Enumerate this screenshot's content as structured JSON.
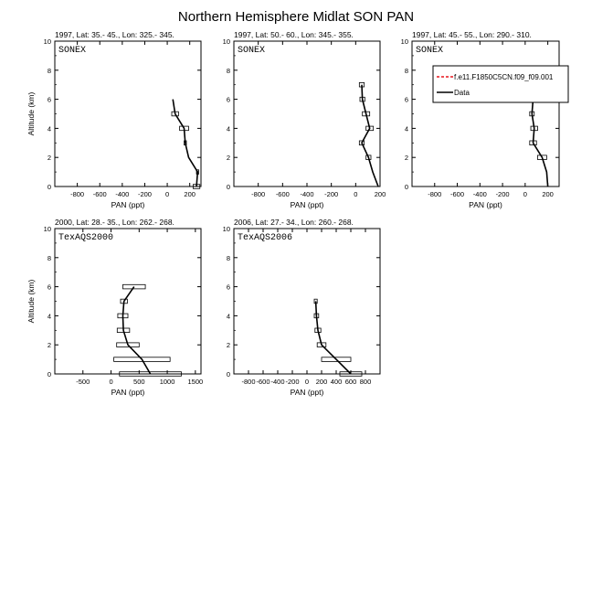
{
  "figure": {
    "title": "Northern Hemisphere Midlat SON PAN"
  },
  "colors": {
    "model_line": "#e8151b",
    "data_line": "#000000",
    "axis": "#000000"
  },
  "legend": {
    "placement": "top-right of third panel",
    "entries": [
      {
        "label": "f.e11.F1850C5CN.f09_f09.001",
        "color": "#e8151b",
        "style": "dashed"
      },
      {
        "label": "Data",
        "color": "#000000",
        "style": "solid"
      }
    ]
  },
  "chart_data": [
    {
      "type": "line",
      "title": "1997, Lat: 35.- 45., Lon: 325.- 345.",
      "campaign": "SONEX",
      "xlabel": "PAN (ppt)",
      "ylabel": "Altitude (km)",
      "xlim": [
        -1000,
        300
      ],
      "ylim": [
        0,
        10
      ],
      "xticks": [
        -800,
        -600,
        -400,
        -200,
        0,
        200
      ],
      "yticks": [
        0,
        2,
        4,
        6,
        8,
        10
      ],
      "series": [
        {
          "name": "Data",
          "altitude": [
            6,
            5,
            4,
            3,
            2,
            1,
            0
          ],
          "pan": [
            50,
            70,
            150,
            160,
            190,
            270,
            260
          ],
          "halfwidth": [
            0,
            30,
            40,
            10,
            0,
            10,
            30
          ]
        }
      ]
    },
    {
      "type": "line",
      "title": "1997, Lat: 50.- 60., Lon: 345.- 355.",
      "campaign": "SONEX",
      "xlabel": "PAN (ppt)",
      "ylabel": "",
      "xlim": [
        -1000,
        200
      ],
      "ylim": [
        0,
        10
      ],
      "xticks": [
        -800,
        -600,
        -400,
        -200,
        0,
        200
      ],
      "yticks": [
        0,
        2,
        4,
        6,
        8,
        10
      ],
      "series": [
        {
          "name": "Data",
          "altitude": [
            7,
            6,
            5,
            4,
            3,
            2,
            1,
            0
          ],
          "pan": [
            50,
            55,
            85,
            115,
            50,
            105,
            140,
            185
          ],
          "halfwidth": [
            20,
            20,
            30,
            30,
            20,
            20,
            0,
            0
          ]
        }
      ]
    },
    {
      "type": "line",
      "title": "1997, Lat: 45.- 55., Lon: 290.- 310.",
      "campaign": "SONEX",
      "xlabel": "PAN (ppt)",
      "ylabel": "",
      "xlim": [
        -1000,
        300
      ],
      "ylim": [
        0,
        10
      ],
      "xticks": [
        -800,
        -600,
        -400,
        -200,
        0,
        200
      ],
      "yticks": [
        0,
        2,
        4,
        6,
        8,
        10
      ],
      "series": [
        {
          "name": "Data",
          "altitude": [
            8,
            7,
            6,
            5,
            4,
            3,
            2,
            1,
            0
          ],
          "pan": [
            60,
            60,
            70,
            60,
            80,
            70,
            150,
            190,
            200
          ],
          "halfwidth": [
            20,
            20,
            30,
            20,
            30,
            30,
            40,
            0,
            0
          ]
        }
      ]
    },
    {
      "type": "line",
      "title": "2000, Lat: 28.- 35., Lon: 262.- 268.",
      "campaign": "TexAQS2000",
      "xlabel": "PAN (ppt)",
      "ylabel": "Altitude (km)",
      "xlim": [
        -1000,
        1600
      ],
      "ylim": [
        0,
        10
      ],
      "xticks": [
        -500,
        0,
        500,
        1000,
        1500
      ],
      "yticks": [
        0,
        2,
        4,
        6,
        8,
        10
      ],
      "series": [
        {
          "name": "Data",
          "altitude": [
            6,
            5,
            4,
            3,
            2,
            1,
            0
          ],
          "pan": [
            410,
            230,
            210,
            220,
            300,
            550,
            700
          ],
          "halfwidth": [
            200,
            60,
            90,
            110,
            200,
            500,
            550
          ]
        }
      ]
    },
    {
      "type": "line",
      "title": "2006, Lat: 27.- 34., Lon: 260.- 268.",
      "campaign": "TexAQS2006",
      "xlabel": "PAN (ppt)",
      "ylabel": "",
      "xlim": [
        -1000,
        1000
      ],
      "ylim": [
        0,
        10
      ],
      "xticks": [
        -800,
        -600,
        -400,
        -200,
        0,
        200,
        400,
        600,
        800
      ],
      "yticks": [
        0,
        2,
        4,
        6,
        8,
        10
      ],
      "series": [
        {
          "name": "Data",
          "altitude": [
            5,
            4,
            3,
            2,
            1,
            0
          ],
          "pan": [
            120,
            130,
            150,
            200,
            400,
            600
          ],
          "halfwidth": [
            20,
            30,
            40,
            60,
            200,
            150
          ]
        }
      ]
    }
  ]
}
